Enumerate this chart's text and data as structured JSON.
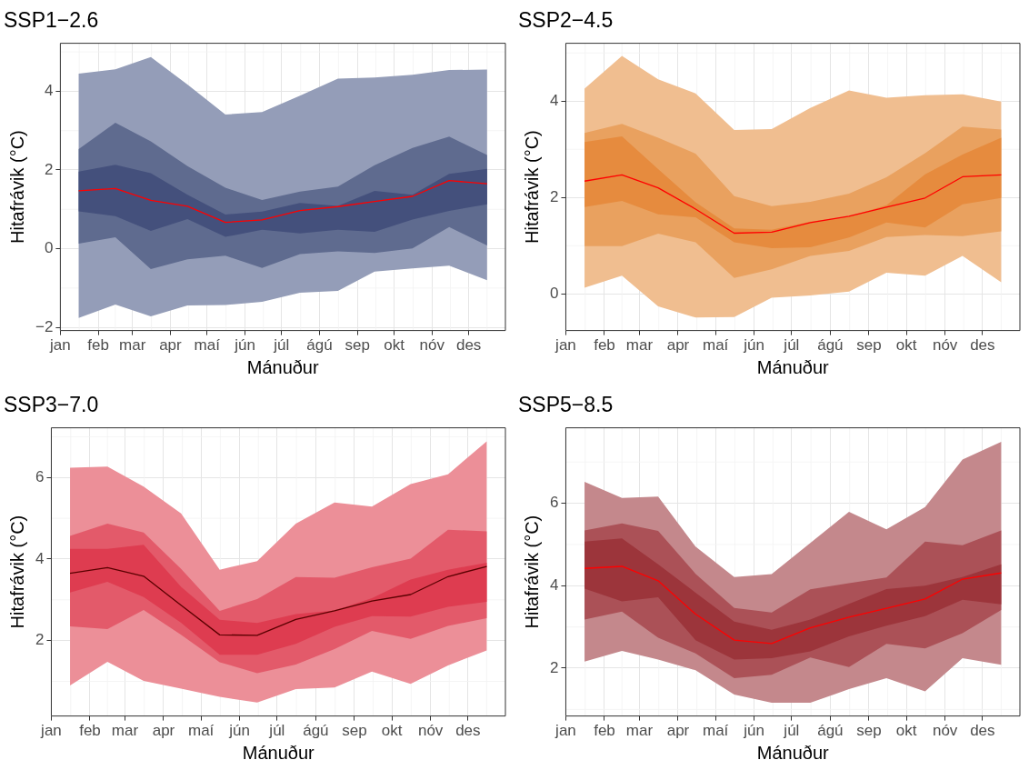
{
  "chart_data": [
    {
      "type": "line",
      "title": "SSP1−2.6",
      "xlabel": "Mánuður",
      "ylabel": "Hitafrávik (°C)",
      "grid": true,
      "x": [
        "--01-16",
        "--02-15",
        "--03-16",
        "--04-15",
        "--05-16",
        "--06-15",
        "--07-16",
        "--08-16",
        "--09-15",
        "--10-16",
        "--11-15",
        "--12-16"
      ],
      "xlim": [
        "--01-01",
        "--12-31"
      ],
      "xticks": [
        {
          "value": "--01-01",
          "label": "jan"
        },
        {
          "value": "--02-01",
          "label": "feb"
        },
        {
          "value": "--03-01",
          "label": "mar"
        },
        {
          "value": "--04-01",
          "label": "apr"
        },
        {
          "value": "--05-01",
          "label": "maí"
        },
        {
          "value": "--06-01",
          "label": "jún"
        },
        {
          "value": "--07-01",
          "label": "júl"
        },
        {
          "value": "--08-01",
          "label": "ágú"
        },
        {
          "value": "--09-01",
          "label": "sep"
        },
        {
          "value": "--10-01",
          "label": "okt"
        },
        {
          "value": "--11-01",
          "label": "nóv"
        },
        {
          "value": "--12-01",
          "label": "des"
        }
      ],
      "ylim": [
        -2.08,
        5.22
      ],
      "yticks": [
        {
          "value": -2,
          "label": "−2"
        },
        0,
        2,
        4
      ],
      "series": [
        {
          "color": "#ff0000",
          "values": [
            1.47,
            1.53,
            1.23,
            1.08,
            0.67,
            0.73,
            0.97,
            1.07,
            1.2,
            1.33,
            1.73,
            1.65
          ]
        },
        {
          "color": "#44507c",
          "values": [
            null,
            null,
            null,
            null,
            null,
            null,
            null,
            null,
            null,
            null,
            null,
            null
          ],
          "lower": [
            0.95,
            0.83,
            0.45,
            0.75,
            0.3,
            0.48,
            0.39,
            0.48,
            0.43,
            0.74,
            0.96,
            1.13
          ],
          "upper": [
            1.96,
            2.13,
            1.92,
            1.37,
            0.87,
            0.94,
            1.16,
            1.09,
            1.47,
            1.37,
            1.9,
            2.03
          ]
        },
        {
          "color": "#5f6b8f",
          "values": [
            null,
            null,
            null,
            null,
            null,
            null,
            null,
            null,
            null,
            null,
            null,
            null
          ],
          "lower": [
            0.13,
            0.29,
            -0.52,
            -0.27,
            -0.18,
            -0.49,
            -0.14,
            -0.07,
            -0.11,
            0.01,
            0.55,
            0.08
          ],
          "upper": [
            2.53,
            3.2,
            2.73,
            2.1,
            1.55,
            1.24,
            1.45,
            1.58,
            2.12,
            2.56,
            2.85,
            2.38
          ]
        },
        {
          "color": "#949db8",
          "values": [
            null,
            null,
            null,
            null,
            null,
            null,
            null,
            null,
            null,
            null,
            null,
            null
          ],
          "lower": [
            -1.76,
            -1.42,
            -1.72,
            -1.44,
            -1.43,
            -1.35,
            -1.12,
            -1.07,
            -0.58,
            -0.5,
            -0.43,
            -0.8
          ],
          "upper": [
            4.45,
            4.56,
            4.87,
            4.17,
            3.41,
            3.47,
            3.89,
            4.32,
            4.35,
            4.42,
            4.54,
            4.55
          ]
        }
      ]
    },
    {
      "type": "line",
      "title": "SSP2−4.5",
      "xlabel": "Mánuður",
      "ylabel": "Hitafrávik (°C)",
      "grid": true,
      "x": [
        "--01-16",
        "--02-15",
        "--03-16",
        "--04-15",
        "--05-16",
        "--06-15",
        "--07-16",
        "--08-16",
        "--09-15",
        "--10-16",
        "--11-15",
        "--12-16"
      ],
      "xlim": [
        "--01-01",
        "--12-31"
      ],
      "xticks": [
        {
          "value": "--01-01",
          "label": "jan"
        },
        {
          "value": "--02-01",
          "label": "feb"
        },
        {
          "value": "--03-01",
          "label": "mar"
        },
        {
          "value": "--04-01",
          "label": "apr"
        },
        {
          "value": "--05-01",
          "label": "maí"
        },
        {
          "value": "--06-01",
          "label": "jún"
        },
        {
          "value": "--07-01",
          "label": "júl"
        },
        {
          "value": "--08-01",
          "label": "ágú"
        },
        {
          "value": "--09-01",
          "label": "sep"
        },
        {
          "value": "--10-01",
          "label": "okt"
        },
        {
          "value": "--11-01",
          "label": "nóv"
        },
        {
          "value": "--12-01",
          "label": "des"
        }
      ],
      "ylim": [
        -0.76,
        5.2
      ],
      "yticks": [
        0,
        2,
        4
      ],
      "series": [
        {
          "color": "#ff0000",
          "values": [
            2.34,
            2.47,
            2.2,
            1.76,
            1.26,
            1.28,
            1.48,
            1.61,
            1.8,
            1.99,
            2.43,
            2.47
          ]
        },
        {
          "color": "#e68b3e",
          "values": [
            null,
            null,
            null,
            null,
            null,
            null,
            null,
            null,
            null,
            null,
            null,
            null
          ],
          "lower": [
            1.8,
            1.93,
            1.65,
            1.59,
            1.07,
            0.95,
            0.97,
            1.17,
            1.48,
            1.38,
            1.86,
            1.99
          ],
          "upper": [
            3.15,
            3.27,
            2.59,
            1.9,
            1.36,
            1.33,
            1.5,
            1.61,
            1.84,
            2.48,
            2.89,
            3.24
          ]
        },
        {
          "color": "#e9a15f",
          "values": [
            null,
            null,
            null,
            null,
            null,
            null,
            null,
            null,
            null,
            null,
            null,
            null
          ],
          "lower": [
            0.99,
            0.99,
            1.25,
            1.07,
            0.33,
            0.51,
            0.79,
            0.89,
            1.18,
            1.22,
            1.2,
            1.3
          ],
          "upper": [
            3.34,
            3.53,
            3.24,
            2.91,
            2.03,
            1.82,
            1.91,
            2.08,
            2.42,
            2.92,
            3.47,
            3.41
          ]
        },
        {
          "color": "#f0be90",
          "values": [
            null,
            null,
            null,
            null,
            null,
            null,
            null,
            null,
            null,
            null,
            null,
            null
          ],
          "lower": [
            0.13,
            0.38,
            -0.26,
            -0.49,
            -0.48,
            -0.08,
            -0.03,
            0.05,
            0.44,
            0.38,
            0.79,
            0.24
          ],
          "upper": [
            4.26,
            4.94,
            4.45,
            4.16,
            3.4,
            3.42,
            3.86,
            4.22,
            4.07,
            4.12,
            4.14,
            3.99
          ]
        }
      ]
    },
    {
      "type": "line",
      "title": "SSP3−7.0",
      "xlabel": "Mánuður",
      "ylabel": "Hitafrávik (°C)",
      "grid": true,
      "x": [
        "--01-16",
        "--02-15",
        "--03-16",
        "--04-15",
        "--05-16",
        "--06-15",
        "--07-16",
        "--08-16",
        "--09-15",
        "--10-16",
        "--11-15",
        "--12-16"
      ],
      "xlim": [
        "--01-01",
        "--12-31"
      ],
      "xticks": [
        {
          "value": "--01-01",
          "label": "jan"
        },
        {
          "value": "--02-01",
          "label": "feb"
        },
        {
          "value": "--03-01",
          "label": "mar"
        },
        {
          "value": "--04-01",
          "label": "apr"
        },
        {
          "value": "--05-01",
          "label": "maí"
        },
        {
          "value": "--06-01",
          "label": "jún"
        },
        {
          "value": "--07-01",
          "label": "júl"
        },
        {
          "value": "--08-01",
          "label": "ágú"
        },
        {
          "value": "--09-01",
          "label": "sep"
        },
        {
          "value": "--10-01",
          "label": "okt"
        },
        {
          "value": "--11-01",
          "label": "nóv"
        },
        {
          "value": "--12-01",
          "label": "des"
        }
      ],
      "ylim": [
        0.15,
        7.22
      ],
      "yticks": [
        2,
        4,
        6
      ],
      "series": [
        {
          "color": "#5a0000",
          "values": [
            3.65,
            3.79,
            3.58,
            2.87,
            2.14,
            2.13,
            2.52,
            2.73,
            2.97,
            3.13,
            3.57,
            3.82
          ]
        },
        {
          "color": "#de3c50",
          "values": [
            null,
            null,
            null,
            null,
            null,
            null,
            null,
            null,
            null,
            null,
            null,
            null
          ],
          "lower": [
            3.18,
            3.44,
            3.07,
            2.44,
            1.65,
            1.65,
            1.92,
            2.34,
            2.6,
            2.59,
            2.83,
            2.95
          ],
          "upper": [
            4.25,
            4.25,
            4.35,
            3.32,
            2.51,
            2.43,
            2.65,
            2.74,
            3.04,
            3.5,
            3.74,
            3.91
          ]
        },
        {
          "color": "#e35a6a",
          "values": [
            null,
            null,
            null,
            null,
            null,
            null,
            null,
            null,
            null,
            null,
            null,
            null
          ],
          "lower": [
            2.35,
            2.28,
            2.75,
            2.14,
            1.47,
            1.2,
            1.41,
            1.79,
            2.24,
            2.04,
            2.36,
            2.55
          ],
          "upper": [
            4.57,
            4.87,
            4.65,
            3.76,
            2.73,
            3.02,
            3.56,
            3.54,
            3.8,
            4.01,
            4.72,
            4.68
          ]
        },
        {
          "color": "#ec8f98",
          "values": [
            null,
            null,
            null,
            null,
            null,
            null,
            null,
            null,
            null,
            null,
            null,
            null
          ],
          "lower": [
            0.9,
            1.48,
            1.01,
            0.82,
            0.62,
            0.48,
            0.81,
            0.85,
            1.24,
            0.94,
            1.39,
            1.76
          ],
          "upper": [
            6.24,
            6.27,
            5.78,
            5.12,
            3.74,
            3.95,
            4.87,
            5.39,
            5.29,
            5.84,
            6.08,
            6.89
          ]
        }
      ]
    },
    {
      "type": "line",
      "title": "SSP5−8.5",
      "xlabel": "Mánuður",
      "ylabel": "Hitafrávik (°C)",
      "grid": true,
      "x": [
        "--01-16",
        "--02-15",
        "--03-16",
        "--04-15",
        "--05-16",
        "--06-15",
        "--07-16",
        "--08-16",
        "--09-15",
        "--10-16",
        "--11-15",
        "--12-16"
      ],
      "xlim": [
        "--01-01",
        "--12-31"
      ],
      "xticks": [
        {
          "value": "--01-01",
          "label": "jan"
        },
        {
          "value": "--02-01",
          "label": "feb"
        },
        {
          "value": "--03-01",
          "label": "mar"
        },
        {
          "value": "--04-01",
          "label": "apr"
        },
        {
          "value": "--05-01",
          "label": "maí"
        },
        {
          "value": "--06-01",
          "label": "jún"
        },
        {
          "value": "--07-01",
          "label": "júl"
        },
        {
          "value": "--08-01",
          "label": "ágú"
        },
        {
          "value": "--09-01",
          "label": "sep"
        },
        {
          "value": "--10-01",
          "label": "okt"
        },
        {
          "value": "--11-01",
          "label": "nóv"
        },
        {
          "value": "--12-01",
          "label": "des"
        }
      ],
      "ylim": [
        0.84,
        7.83
      ],
      "yticks": [
        2,
        4,
        6
      ],
      "series": [
        {
          "color": "#ff0000",
          "values": [
            4.42,
            4.47,
            4.12,
            3.31,
            2.68,
            2.6,
            2.98,
            3.24,
            3.45,
            3.68,
            4.16,
            4.31
          ]
        },
        {
          "color": "#9c353b",
          "values": [
            null,
            null,
            null,
            null,
            null,
            null,
            null,
            null,
            null,
            null,
            null,
            null
          ],
          "lower": [
            3.93,
            3.62,
            3.72,
            2.68,
            2.21,
            2.24,
            2.41,
            2.77,
            3.03,
            3.26,
            3.66,
            3.55
          ],
          "upper": [
            5.07,
            5.15,
            4.52,
            3.83,
            3.13,
            2.93,
            3.18,
            3.56,
            3.92,
            4.0,
            4.21,
            4.52
          ]
        },
        {
          "color": "#ab5157",
          "values": [
            null,
            null,
            null,
            null,
            null,
            null,
            null,
            null,
            null,
            null,
            null,
            null
          ],
          "lower": [
            3.18,
            3.37,
            2.74,
            2.36,
            1.76,
            1.84,
            2.26,
            2.03,
            2.59,
            2.48,
            2.85,
            3.41
          ],
          "upper": [
            5.34,
            5.51,
            5.33,
            4.29,
            3.46,
            3.35,
            3.91,
            4.06,
            4.2,
            5.07,
            4.98,
            5.34
          ]
        },
        {
          "color": "#c4888c",
          "values": [
            null,
            null,
            null,
            null,
            null,
            null,
            null,
            null,
            null,
            null,
            null,
            null
          ],
          "lower": [
            2.16,
            2.42,
            2.21,
            1.95,
            1.36,
            1.16,
            1.16,
            1.49,
            1.76,
            1.44,
            2.24,
            2.08
          ],
          "upper": [
            6.52,
            6.13,
            6.16,
            4.95,
            4.21,
            4.28,
            5.04,
            5.79,
            5.37,
            5.91,
            7.06,
            7.49
          ]
        }
      ]
    }
  ]
}
